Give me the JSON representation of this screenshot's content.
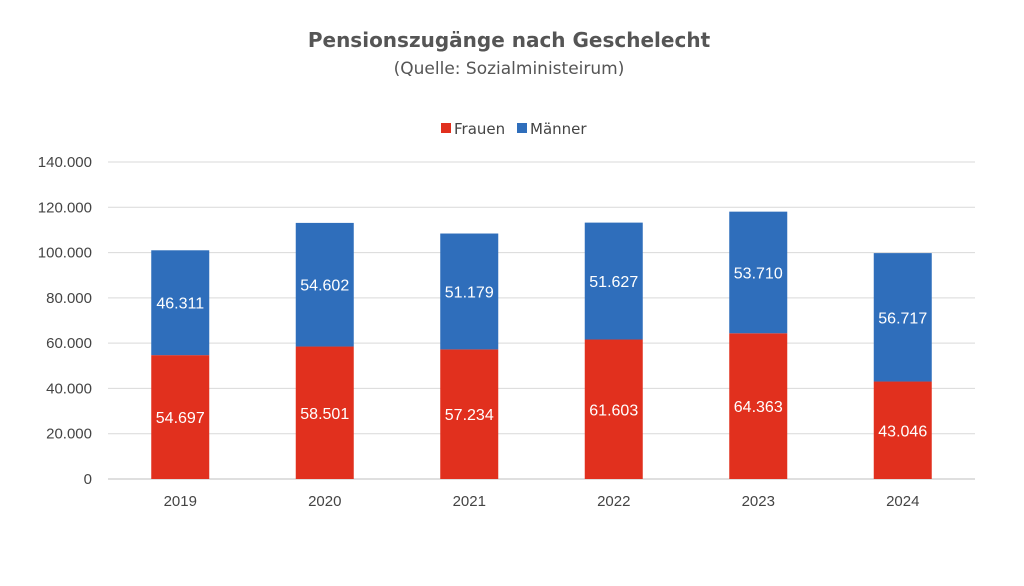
{
  "chart_data": {
    "type": "bar",
    "stacked": true,
    "title": "Pensionszugänge nach Geschelecht",
    "subtitle": "(Quelle: Sozialministeirum)",
    "categories": [
      "2019",
      "2020",
      "2021",
      "2022",
      "2023",
      "2024"
    ],
    "series": [
      {
        "name": "Frauen",
        "color": "#e1301e",
        "values": [
          54697,
          58501,
          57234,
          61603,
          64363,
          43046
        ],
        "labels": [
          "54.697",
          "58.501",
          "57.234",
          "61.603",
          "64.363",
          "43.046"
        ]
      },
      {
        "name": "Männer",
        "color": "#2f6ebb",
        "values": [
          46311,
          54602,
          51179,
          51627,
          53710,
          56717
        ],
        "labels": [
          "46.311",
          "54.602",
          "51.179",
          "51.627",
          "53.710",
          "56.717"
        ]
      }
    ],
    "ylim": [
      0,
      140000
    ],
    "yticks": [
      0,
      20000,
      40000,
      60000,
      80000,
      100000,
      120000,
      140000
    ],
    "ytick_labels": [
      "0",
      "20.000",
      "40.000",
      "60.000",
      "80.000",
      "100.000",
      "120.000",
      "140.000"
    ],
    "xlabel": "",
    "ylabel": "",
    "grid": true,
    "legend_position": "top-center"
  }
}
